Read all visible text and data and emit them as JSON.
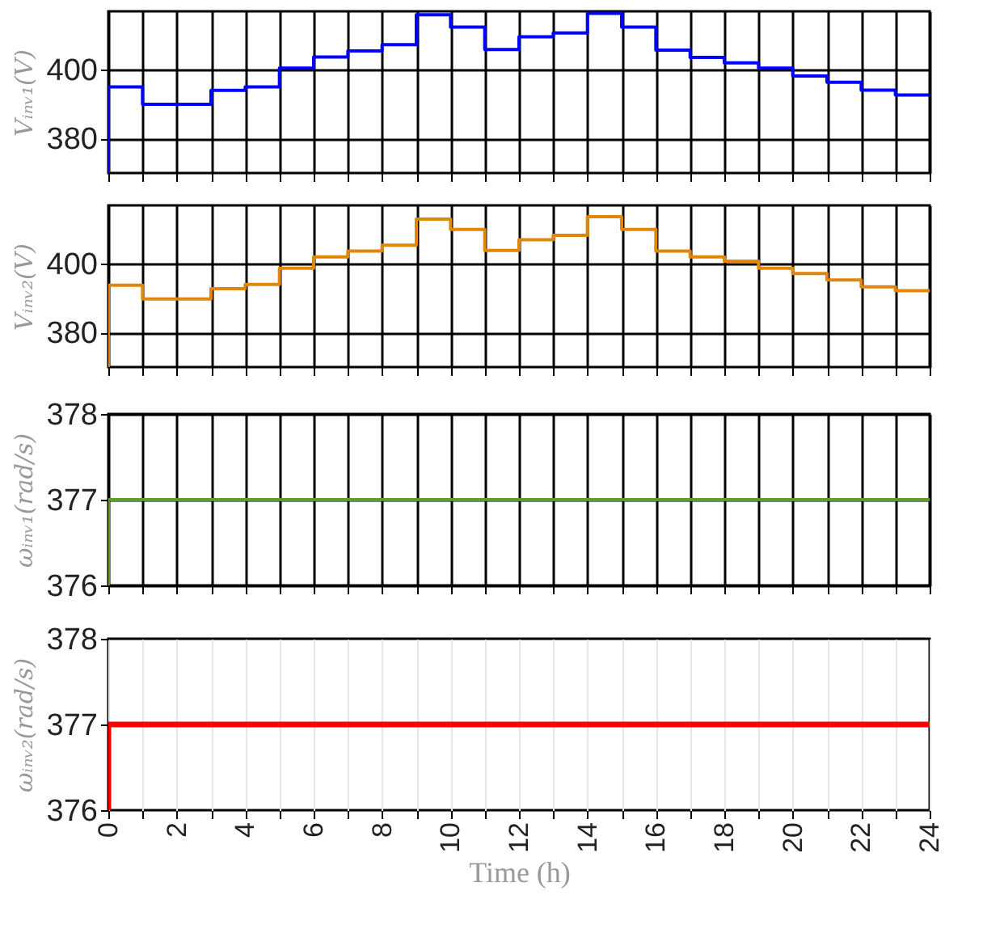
{
  "chart_data": [
    {
      "type": "step",
      "ylabel": "Vᵢₙᵥ₁(V)",
      "x": [
        0,
        0,
        1,
        2,
        3,
        4,
        5,
        6,
        7,
        8,
        9,
        10,
        11,
        12,
        13,
        14,
        15,
        16,
        17,
        18,
        19,
        20,
        21,
        22,
        23,
        24
      ],
      "series": [
        {
          "color": "#0000ff",
          "values": [
            370,
            395,
            390,
            390,
            394,
            395,
            400.5,
            403.7,
            405.5,
            407.3,
            416,
            412.4,
            405.9,
            409.6,
            410.7,
            416.4,
            412.4,
            405.7,
            403.6,
            402,
            400.5,
            398.2,
            396.4,
            394.1,
            392.7,
            392.7
          ]
        }
      ],
      "xlim": [
        0,
        24
      ],
      "xticks": [
        0,
        {
          "value": 1,
          "label": null
        },
        2,
        {
          "value": 3,
          "label": null
        },
        4,
        {
          "value": 5,
          "label": null
        },
        6,
        {
          "value": 7,
          "label": null
        },
        8,
        {
          "value": 9,
          "label": null
        },
        10,
        {
          "value": 11,
          "label": null
        },
        12,
        {
          "value": 13,
          "label": null
        },
        14,
        {
          "value": 15,
          "label": null
        },
        16,
        {
          "value": 17,
          "label": null
        },
        18,
        {
          "value": 19,
          "label": null
        },
        20,
        {
          "value": 21,
          "label": null
        },
        22,
        {
          "value": 23,
          "label": null
        },
        24
      ],
      "ylim": [
        370,
        417
      ],
      "yticks": [
        380,
        400
      ],
      "grid": true,
      "tick_labels": "y"
    },
    {
      "type": "step",
      "ylabel": "Vᵢₙᵥ₂(V)",
      "x": [
        0,
        0,
        1,
        2,
        3,
        4,
        5,
        6,
        7,
        8,
        9,
        10,
        11,
        12,
        13,
        14,
        15,
        16,
        17,
        18,
        19,
        20,
        21,
        22,
        23,
        24
      ],
      "series": [
        {
          "color": "#e0860a",
          "values": [
            370,
            393.8,
            389.8,
            389.8,
            392.8,
            394,
            398.7,
            402,
            403.7,
            405.4,
            413,
            410,
            403.9,
            407,
            408.3,
            413.7,
            410,
            403.7,
            402,
            400.8,
            398.7,
            397.2,
            395.3,
            393.3,
            392.2,
            392.2
          ]
        }
      ],
      "xlim": [
        0,
        24
      ],
      "xticks": [
        0,
        {
          "value": 1,
          "label": null
        },
        2,
        {
          "value": 3,
          "label": null
        },
        4,
        {
          "value": 5,
          "label": null
        },
        6,
        {
          "value": 7,
          "label": null
        },
        8,
        {
          "value": 9,
          "label": null
        },
        10,
        {
          "value": 11,
          "label": null
        },
        12,
        {
          "value": 13,
          "label": null
        },
        14,
        {
          "value": 15,
          "label": null
        },
        16,
        {
          "value": 17,
          "label": null
        },
        18,
        {
          "value": 19,
          "label": null
        },
        20,
        {
          "value": 21,
          "label": null
        },
        22,
        {
          "value": 23,
          "label": null
        },
        24
      ],
      "ylim": [
        370,
        417
      ],
      "yticks": [
        380,
        400
      ],
      "grid": true,
      "tick_labels": "y"
    },
    {
      "type": "line",
      "ylabel": "ωᵢₙᵥ₁(rad/s)",
      "x": [
        0,
        0,
        6,
        12,
        18,
        24
      ],
      "series": [
        {
          "color": "#5e9e24",
          "values": [
            376,
            377,
            377,
            377,
            377,
            377
          ]
        }
      ],
      "xlim": [
        0,
        24
      ],
      "xticks": [
        0,
        {
          "value": 1,
          "label": null
        },
        2,
        {
          "value": 3,
          "label": null
        },
        4,
        {
          "value": 5,
          "label": null
        },
        6,
        {
          "value": 7,
          "label": null
        },
        8,
        {
          "value": 9,
          "label": null
        },
        10,
        {
          "value": 11,
          "label": null
        },
        12,
        {
          "value": 13,
          "label": null
        },
        14,
        {
          "value": 15,
          "label": null
        },
        16,
        {
          "value": 17,
          "label": null
        },
        18,
        {
          "value": 19,
          "label": null
        },
        20,
        {
          "value": 21,
          "label": null
        },
        22,
        {
          "value": 23,
          "label": null
        },
        24
      ],
      "ylim": [
        376,
        378
      ],
      "yticks": [
        376,
        377,
        378
      ],
      "grid": true,
      "tick_labels": "y"
    },
    {
      "type": "line",
      "ylabel": "ωᵢₙᵥ₂(rad/s)",
      "xlabel": "Time (h)",
      "x": [
        0,
        0,
        6,
        12,
        18,
        24
      ],
      "series": [
        {
          "color": "#ff0000",
          "values": [
            376,
            377,
            377,
            377,
            377,
            377
          ]
        }
      ],
      "xlim": [
        0,
        24
      ],
      "xticks": [
        0,
        {
          "value": 1,
          "label": null
        },
        2,
        {
          "value": 3,
          "label": null
        },
        4,
        {
          "value": 5,
          "label": null
        },
        6,
        {
          "value": 7,
          "label": null
        },
        8,
        {
          "value": 9,
          "label": null
        },
        10,
        {
          "value": 11,
          "label": null
        },
        12,
        {
          "value": 13,
          "label": null
        },
        14,
        {
          "value": 15,
          "label": null
        },
        16,
        {
          "value": 17,
          "label": null
        },
        18,
        {
          "value": 19,
          "label": null
        },
        20,
        {
          "value": 21,
          "label": null
        },
        22,
        {
          "value": 23,
          "label": null
        },
        24
      ],
      "ylim": [
        376,
        378
      ],
      "yticks": [
        376,
        377,
        378
      ],
      "grid": "x"
    }
  ]
}
